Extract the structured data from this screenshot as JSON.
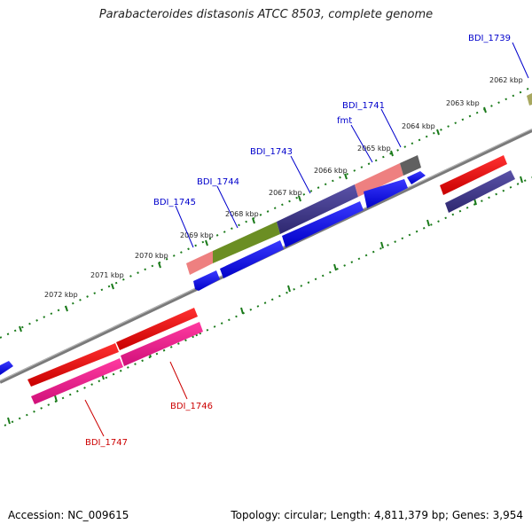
{
  "title": "Parabacteroides distasonis ATCC 8503, complete genome",
  "footer": {
    "accession": "Accession: NC_009615",
    "stats": "Topology: circular; Length: 4,811,379 bp; Genes: 3,954"
  },
  "scale_labels": [
    "2062 kbp",
    "2063 kbp",
    "2064 kbp",
    "2065 kbp",
    "2066 kbp",
    "2067 kbp",
    "2068 kbp",
    "2069 kbp",
    "2070 kbp",
    "2071 kbp",
    "2072 kbp"
  ],
  "gene_labels": [
    "BDI_1739",
    "BDI_1741",
    "fmt",
    "BDI_1743",
    "BDI_1744",
    "BDI_1745",
    "BDI_1746",
    "BDI_1747"
  ],
  "colors": {
    "backbone": "#7a7a7a",
    "scale_ticks": "#1a7a1a",
    "cds_blue": "#0000ee",
    "cds_red": "#ee0000",
    "cds_magenta": "#ee1a8c",
    "cds_purple": "#3a3280",
    "cds_olive": "#6b8e23",
    "cds_salmon": "#ee8080",
    "cds_gray": "#606060",
    "cds_khaki": "#a8a860",
    "label_blue": "#0000cc",
    "label_red": "#cc0000"
  }
}
